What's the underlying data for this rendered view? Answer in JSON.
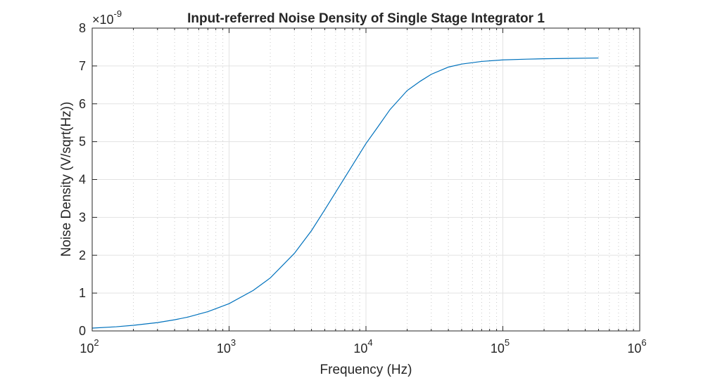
{
  "chart_data": {
    "type": "line",
    "title": "Input-referred Noise Density of Single Stage Integrator 1",
    "xlabel": "Frequency (Hz)",
    "ylabel": "Noise Density (V/sqrt(Hz))",
    "x_scale": "log",
    "xlim": [
      100,
      1000000
    ],
    "ylim": [
      0,
      8e-09
    ],
    "y_exponent_label": "×10",
    "y_exponent_power": "-9",
    "x_tick_labels": [
      {
        "base": "10",
        "power": "2",
        "value": 100
      },
      {
        "base": "10",
        "power": "3",
        "value": 1000
      },
      {
        "base": "10",
        "power": "4",
        "value": 10000
      },
      {
        "base": "10",
        "power": "5",
        "value": 100000
      },
      {
        "base": "10",
        "power": "6",
        "value": 1000000
      }
    ],
    "y_tick_labels": [
      {
        "label": "0",
        "value": 0
      },
      {
        "label": "1",
        "value": 1e-09
      },
      {
        "label": "2",
        "value": 2e-09
      },
      {
        "label": "3",
        "value": 3e-09
      },
      {
        "label": "4",
        "value": 4e-09
      },
      {
        "label": "5",
        "value": 5e-09
      },
      {
        "label": "6",
        "value": 6e-09
      },
      {
        "label": "7",
        "value": 7e-09
      },
      {
        "label": "8",
        "value": 8e-09
      }
    ],
    "grid": true,
    "minor_grid_x": true,
    "series": [
      {
        "color": "#0072bd",
        "x": [
          100,
          150,
          200,
          300,
          400,
          500,
          700,
          1000,
          1500,
          2000,
          3000,
          4000,
          5000,
          7000,
          10000,
          12000,
          15000,
          20000,
          25000,
          30000,
          40000,
          50000,
          70000,
          100000,
          150000,
          200000,
          300000,
          500000
        ],
        "y": [
          7.4e-11,
          1.1e-10,
          1.48e-10,
          2.2e-10,
          2.95e-10,
          3.65e-10,
          5.1e-10,
          7.2e-10,
          1.07e-09,
          1.4e-09,
          2.05e-09,
          2.65e-09,
          3.2e-09,
          4.05e-09,
          4.95e-09,
          5.35e-09,
          5.85e-09,
          6.35e-09,
          6.6e-09,
          6.78e-09,
          6.97e-09,
          7.05e-09,
          7.12e-09,
          7.16e-09,
          7.18e-09,
          7.19e-09,
          7.2e-09,
          7.21e-09
        ]
      }
    ]
  }
}
